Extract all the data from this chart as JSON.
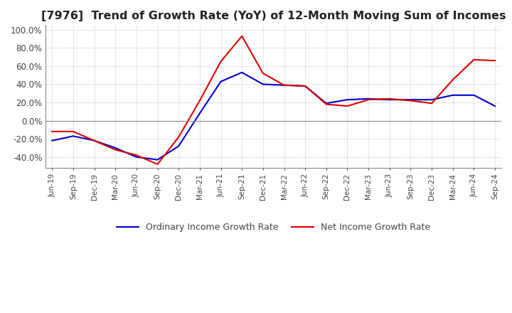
{
  "title": "[7976]  Trend of Growth Rate (YoY) of 12-Month Moving Sum of Incomes",
  "title_fontsize": 11.5,
  "ylim": [
    -52,
    105
  ],
  "yticks": [
    -40,
    -20,
    0,
    20,
    40,
    60,
    80,
    100
  ],
  "background_color": "#ffffff",
  "grid_color": "#aaaacc",
  "legend_labels": [
    "Ordinary Income Growth Rate",
    "Net Income Growth Rate"
  ],
  "line_colors": [
    "#0000cc",
    "#dd0000"
  ],
  "dates": [
    "Jun-19",
    "Sep-19",
    "Dec-19",
    "Mar-20",
    "Jun-20",
    "Sep-20",
    "Dec-20",
    "Mar-21",
    "Jun-21",
    "Sep-21",
    "Dec-21",
    "Mar-22",
    "Jun-22",
    "Sep-22",
    "Dec-22",
    "Mar-23",
    "Jun-23",
    "Sep-23",
    "Dec-23",
    "Mar-24",
    "Jun-24",
    "Sep-24"
  ],
  "ordinary_income": [
    -22,
    -17,
    -22,
    -30,
    -40,
    -43,
    -28,
    8,
    43,
    53,
    40,
    39,
    38,
    19,
    23,
    24,
    23,
    23,
    23,
    28,
    28,
    16
  ],
  "net_income": [
    -12,
    -12,
    -22,
    -32,
    -38,
    -48,
    -18,
    22,
    65,
    93,
    52,
    39,
    38,
    18,
    16,
    23,
    24,
    22,
    19,
    45,
    67,
    66
  ]
}
